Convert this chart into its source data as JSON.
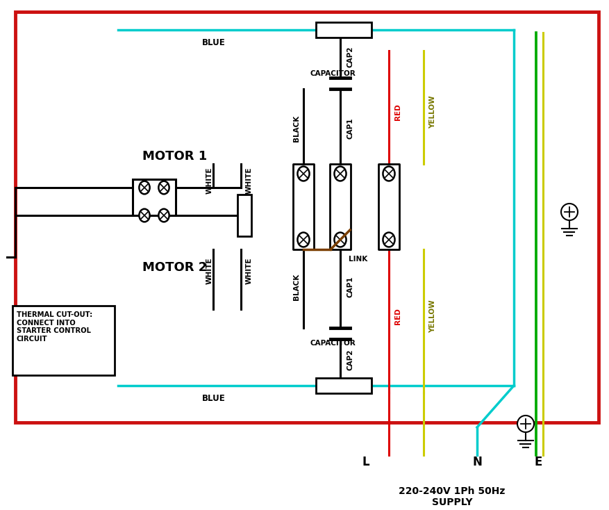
{
  "bg": "#ffffff",
  "border_color": "#cc1111",
  "lw": 2.2,
  "fig_w": 8.78,
  "fig_h": 7.34,
  "dpi": 100,
  "motor1": "MOTOR 1",
  "motor2": "MOTOR 2",
  "thermal": "THERMAL CUT-OUT:\nCONNECT INTO\nSTARTER CONTROL\nCIRCUIT",
  "supply": "220-240V 1Ph 50Hz\nSUPPLY",
  "red": "#dd0000",
  "yellow": "#cccc00",
  "brown": "#7B3F00",
  "cyan": "#00cccc",
  "green": "#00aa00"
}
